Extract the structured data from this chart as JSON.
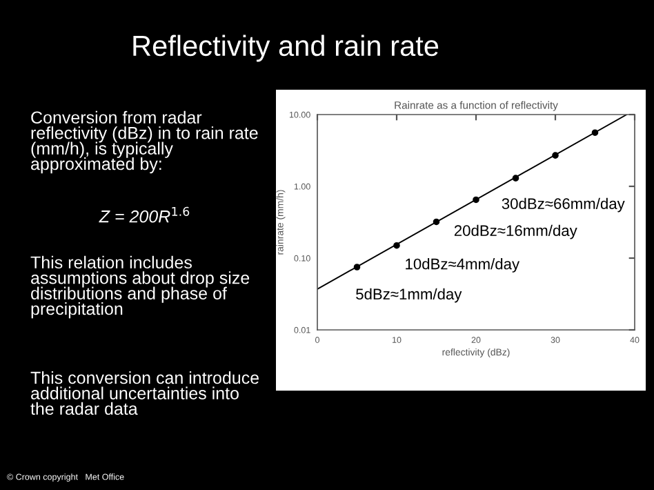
{
  "chart_data": {
    "type": "scatter",
    "title": "Rainrate as a function of reflectivity",
    "xlabel": "reflectivity (dBz)",
    "ylabel": "rainrate (mm/h)",
    "xlim": [
      0,
      40
    ],
    "xticks": [
      0,
      10,
      20,
      30,
      40
    ],
    "ylim": [
      0.01,
      10
    ],
    "yticks": [
      {
        "value": 0.01,
        "label": "0.01"
      },
      {
        "value": 0.1,
        "label": "0.10"
      },
      {
        "value": 1,
        "label": "1.00"
      },
      {
        "value": 10,
        "label": "10.00"
      }
    ],
    "log": "y",
    "marker": "circle",
    "grid": false,
    "legend": false,
    "series": [
      {
        "color": "#000000",
        "x": [
          5,
          10,
          15,
          20,
          25,
          30,
          35
        ],
        "values": [
          0.075,
          0.15,
          0.32,
          0.65,
          1.3,
          2.7,
          5.6
        ]
      },
      {
        "type": "line",
        "color": "#000000",
        "marker": "none",
        "x": [
          0,
          39
        ],
        "values": [
          0.037,
          10
        ]
      }
    ],
    "annotations": [
      "Reflectivity and rain rate",
      "Conversion from radar\nreflectivity (dBz) in to rain rate\n(mm/h), is typically\napproximated by:",
      "Z = 200R$^{1.6}$",
      "This relation includes\nassumptions about drop size\ndistributions and phase of\nprecipitation",
      "This conversion can introduce\nadditional uncertainties into\nthe radar data",
      "© Crown copyright   Met Office",
      "30dBz≈66mm/day",
      "20dBz≈16mm/day",
      "10dBz≈4mm/day",
      "5dBz≈1mm/day"
    ]
  }
}
